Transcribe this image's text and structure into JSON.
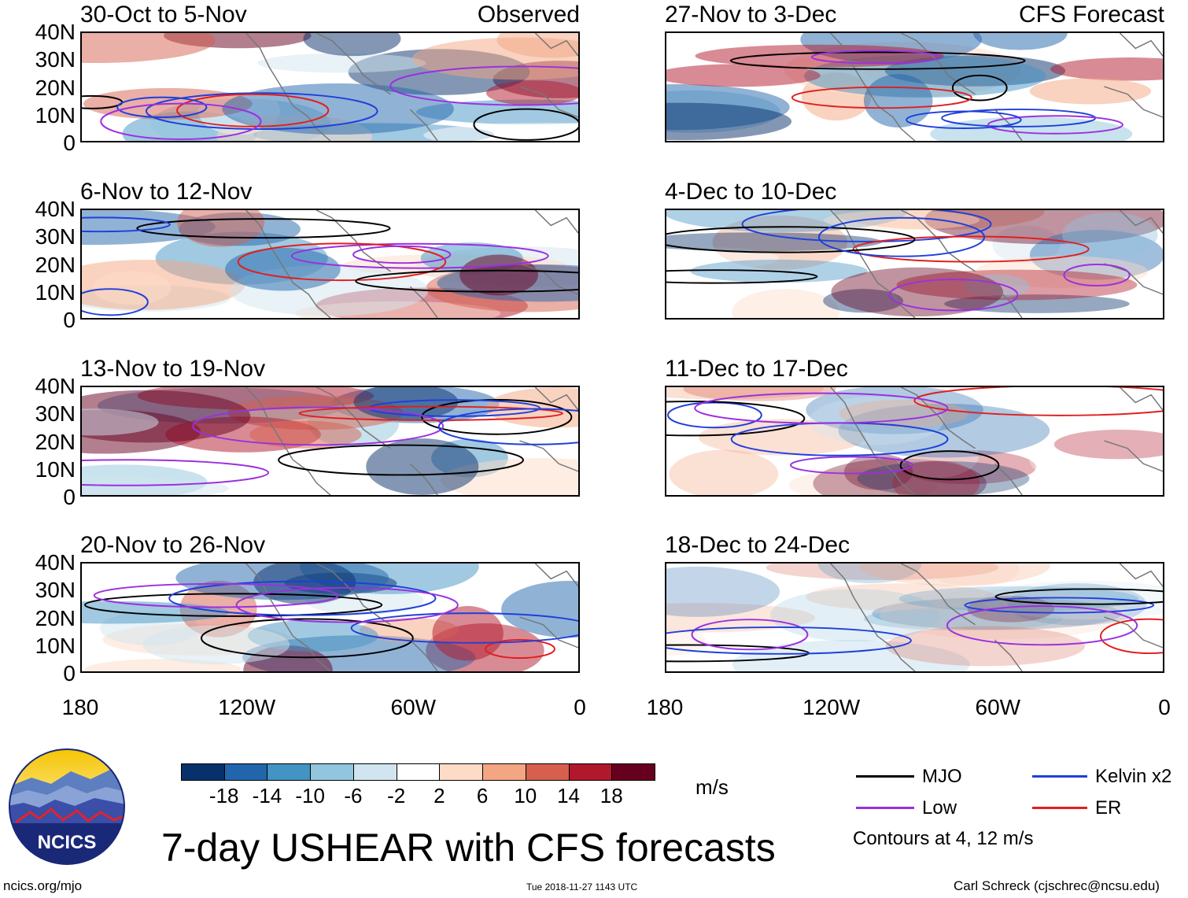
{
  "panels": [
    {
      "title": "30-Oct to 5-Nov",
      "subtitle": "Observed"
    },
    {
      "title": "27-Nov to 3-Dec",
      "subtitle": "CFS Forecast"
    },
    {
      "title": "6-Nov to 12-Nov",
      "subtitle": ""
    },
    {
      "title": "4-Dec to 10-Dec",
      "subtitle": ""
    },
    {
      "title": "13-Nov to 19-Nov",
      "subtitle": ""
    },
    {
      "title": "11-Dec to 17-Dec",
      "subtitle": ""
    },
    {
      "title": "20-Nov to 26-Nov",
      "subtitle": ""
    },
    {
      "title": "18-Dec to 24-Dec",
      "subtitle": ""
    }
  ],
  "lat_labels": [
    "40N",
    "30N",
    "20N",
    "10N",
    "0"
  ],
  "lon_labels": [
    "180",
    "120W",
    "60W",
    "0"
  ],
  "colorbar": {
    "labels": [
      "-18",
      "-14",
      "-10",
      "-6",
      "-2",
      "2",
      "6",
      "10",
      "14",
      "18"
    ],
    "colors": [
      "#08306b",
      "#2166ac",
      "#4393c3",
      "#92c5de",
      "#d1e5f0",
      "#ffffff",
      "#fddbc7",
      "#f4a582",
      "#d6604d",
      "#b2182b",
      "#67001f"
    ],
    "units": "m/s"
  },
  "legend": {
    "items": [
      {
        "label": "MJO",
        "color": "#000000"
      },
      {
        "label": "Kelvin x2",
        "color": "#1f3fdc"
      },
      {
        "label": "Low",
        "color": "#9b30e0"
      },
      {
        "label": "ER",
        "color": "#e01f1f"
      }
    ],
    "note": "Contours at 4, 12 m/s"
  },
  "main_title": "7-day USHEAR with CFS forecasts",
  "logo_text": "NCICS",
  "footer": {
    "left": "ncics.org/mjo",
    "center": "Tue 2018-11-27 1143 UTC",
    "right": "Carl Schreck (cjschrec@ncsu.edu)"
  }
}
